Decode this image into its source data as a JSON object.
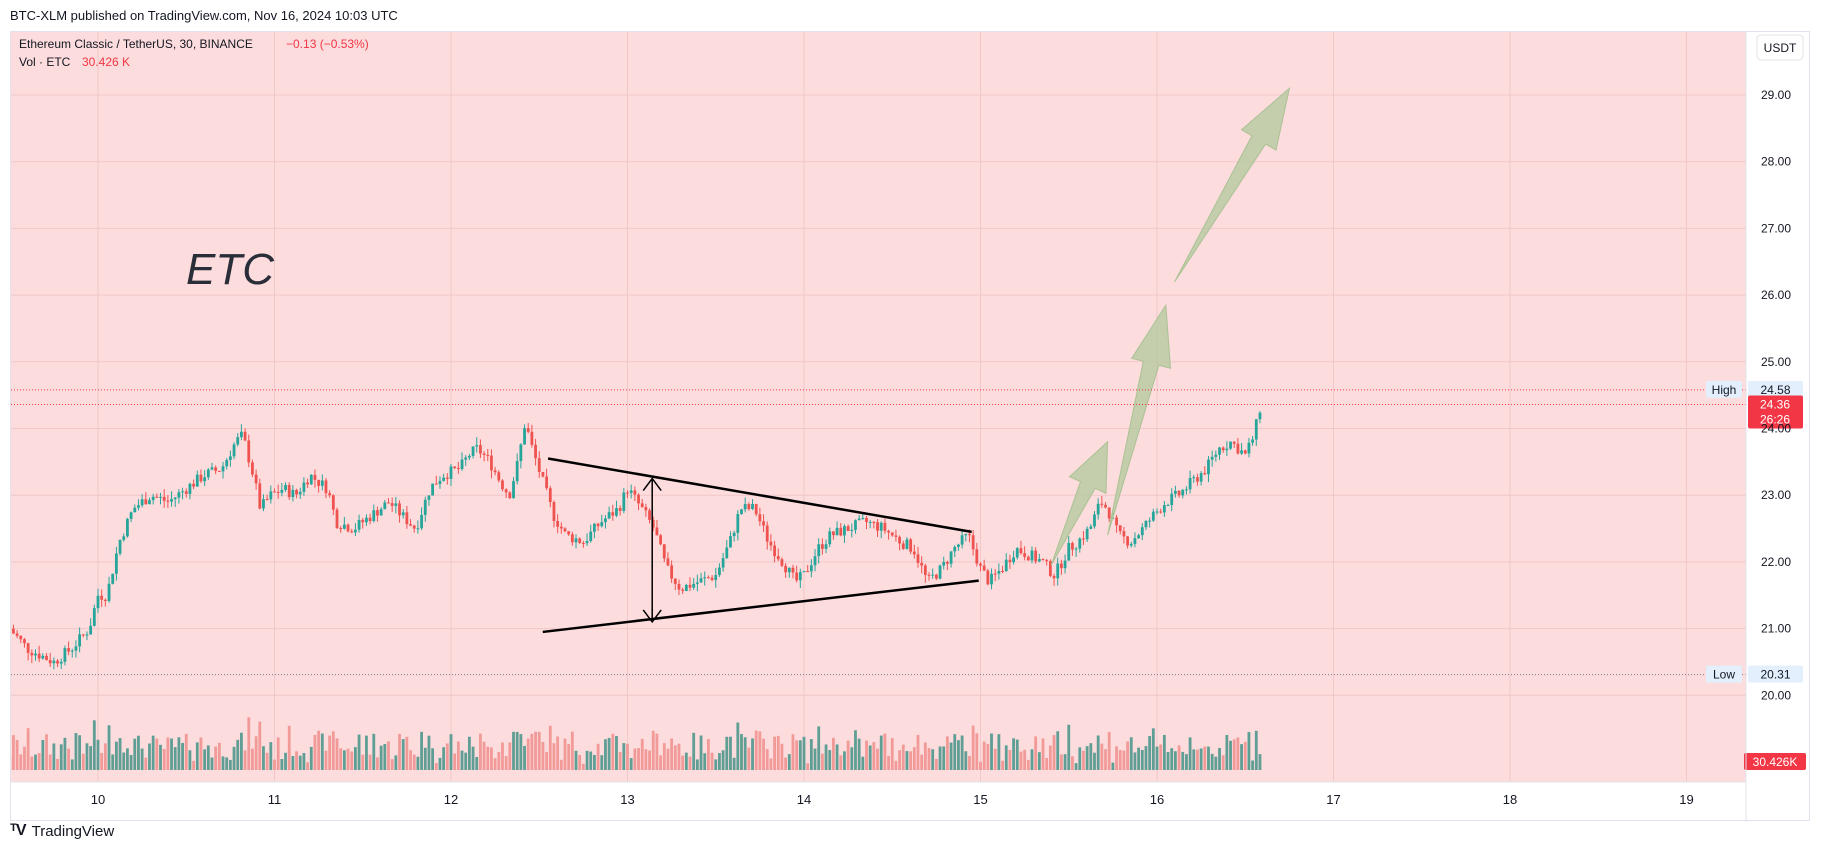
{
  "publish_line": "BTC-XLM published on TradingView.com, Nov 16, 2024 10:03 UTC",
  "footer": {
    "brand": "TradingView",
    "logo_icon": "tradingview-logo-icon"
  },
  "legend": {
    "symbol_line": "Ethereum Classic / TetherUS, 30, BINANCE",
    "change": "−0.13 (−0.53%)",
    "volume_label": "Vol · ETC",
    "volume_value": "30.426 K"
  },
  "currency_button": "USDT",
  "annotation_text": "ETC",
  "colors": {
    "background": "#fcdcdd",
    "up": "#26a69a",
    "down": "#ef5350",
    "vol_up": "#5e9e94",
    "vol_down": "#f19a98",
    "arrow_fill": "#b5c9a0",
    "line": "#000000",
    "last_price": "#f23645"
  },
  "chart_data": {
    "type": "candlestick",
    "symbol": "Ethereum Classic / TetherUS",
    "interval": "30",
    "exchange": "BINANCE",
    "y_axis_ticks": [
      "29.00",
      "28.00",
      "27.00",
      "26.00",
      "25.00",
      "24.00",
      "23.00",
      "22.00",
      "21.00",
      "20.00"
    ],
    "ylim": [
      19.5,
      29.4
    ],
    "x_axis_ticks": [
      "10",
      "11",
      "12",
      "13",
      "14",
      "15",
      "16",
      "17",
      "18",
      "19"
    ],
    "xlim_days": [
      9.5,
      19.3
    ],
    "high_label": "High",
    "high": 24.58,
    "low_label": "Low",
    "low": 20.31,
    "last_price": "24.36",
    "countdown": "26:26",
    "volume_last": "30.426K",
    "price_path": [
      [
        9.5,
        21.0
      ],
      [
        9.6,
        20.7
      ],
      [
        9.75,
        20.5
      ],
      [
        9.85,
        20.7
      ],
      [
        9.95,
        21.0
      ],
      [
        10.0,
        21.5
      ],
      [
        10.05,
        21.5
      ],
      [
        10.12,
        22.3
      ],
      [
        10.2,
        22.8
      ],
      [
        10.3,
        23.0
      ],
      [
        10.4,
        22.9
      ],
      [
        10.5,
        23.1
      ],
      [
        10.6,
        23.3
      ],
      [
        10.7,
        23.4
      ],
      [
        10.78,
        23.8
      ],
      [
        10.82,
        23.9
      ],
      [
        10.88,
        23.3
      ],
      [
        10.92,
        22.8
      ],
      [
        10.98,
        23.0
      ],
      [
        11.05,
        23.1
      ],
      [
        11.12,
        23.0
      ],
      [
        11.2,
        23.3
      ],
      [
        11.3,
        23.1
      ],
      [
        11.35,
        22.6
      ],
      [
        11.45,
        22.5
      ],
      [
        11.55,
        22.7
      ],
      [
        11.65,
        22.9
      ],
      [
        11.72,
        22.7
      ],
      [
        11.8,
        22.5
      ],
      [
        11.88,
        23.1
      ],
      [
        11.95,
        23.3
      ],
      [
        12.05,
        23.4
      ],
      [
        12.1,
        23.6
      ],
      [
        12.15,
        23.7
      ],
      [
        12.22,
        23.5
      ],
      [
        12.28,
        23.2
      ],
      [
        12.33,
        23.0
      ],
      [
        12.38,
        23.5
      ],
      [
        12.42,
        24.1
      ],
      [
        12.46,
        23.7
      ],
      [
        12.52,
        23.2
      ],
      [
        12.58,
        22.7
      ],
      [
        12.65,
        22.4
      ],
      [
        12.75,
        22.3
      ],
      [
        12.85,
        22.6
      ],
      [
        12.95,
        22.8
      ],
      [
        13.0,
        23.1
      ],
      [
        13.08,
        22.8
      ],
      [
        13.15,
        22.5
      ],
      [
        13.22,
        21.9
      ],
      [
        13.3,
        21.6
      ],
      [
        13.4,
        21.7
      ],
      [
        13.5,
        21.8
      ],
      [
        13.58,
        22.3
      ],
      [
        13.64,
        22.8
      ],
      [
        13.72,
        22.8
      ],
      [
        13.8,
        22.3
      ],
      [
        13.88,
        22.0
      ],
      [
        13.95,
        21.7
      ],
      [
        14.0,
        21.8
      ],
      [
        14.08,
        22.2
      ],
      [
        14.15,
        22.4
      ],
      [
        14.25,
        22.5
      ],
      [
        14.35,
        22.6
      ],
      [
        14.45,
        22.5
      ],
      [
        14.55,
        22.3
      ],
      [
        14.62,
        22.2
      ],
      [
        14.7,
        21.7
      ],
      [
        14.78,
        21.9
      ],
      [
        14.85,
        22.2
      ],
      [
        14.93,
        22.4
      ],
      [
        15.0,
        21.9
      ],
      [
        15.05,
        21.7
      ],
      [
        15.12,
        21.9
      ],
      [
        15.2,
        22.2
      ],
      [
        15.28,
        22.1
      ],
      [
        15.35,
        22.0
      ],
      [
        15.42,
        21.8
      ],
      [
        15.5,
        22.2
      ],
      [
        15.55,
        22.3
      ],
      [
        15.62,
        22.5
      ],
      [
        15.68,
        22.9
      ],
      [
        15.72,
        22.8
      ],
      [
        15.78,
        22.4
      ],
      [
        15.85,
        22.3
      ],
      [
        15.92,
        22.5
      ],
      [
        15.98,
        22.7
      ],
      [
        16.05,
        22.9
      ],
      [
        16.12,
        23.0
      ],
      [
        16.2,
        23.2
      ],
      [
        16.28,
        23.4
      ],
      [
        16.35,
        23.7
      ],
      [
        16.42,
        23.8
      ],
      [
        16.5,
        23.6
      ],
      [
        16.55,
        23.9
      ],
      [
        16.6,
        24.5
      ]
    ],
    "annotations": {
      "pattern": "symmetrical triangle",
      "upper_trendline": [
        [
          12.55,
          23.55
        ],
        [
          14.95,
          22.45
        ]
      ],
      "lower_trendline": [
        [
          12.52,
          20.95
        ],
        [
          14.99,
          21.72
        ]
      ],
      "height_arrow": [
        [
          13.14,
          23.25
        ],
        [
          13.14,
          21.1
        ]
      ],
      "projection_arrows": [
        [
          [
            15.4,
            21.95
          ],
          [
            15.72,
            23.8
          ]
        ],
        [
          [
            15.72,
            22.4
          ],
          [
            16.05,
            25.85
          ]
        ],
        [
          [
            16.1,
            26.2
          ],
          [
            16.75,
            29.1
          ]
        ]
      ]
    }
  }
}
